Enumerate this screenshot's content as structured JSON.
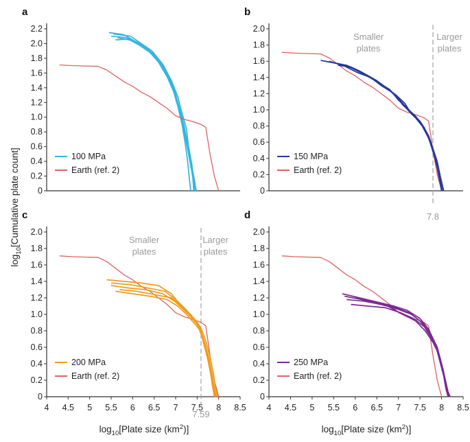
{
  "figure": {
    "ylabel_main": "log",
    "ylabel_sub": "10",
    "ylabel_rest": "[Cumulative plate count]",
    "xlabel_main": "log",
    "xlabel_sub": "10",
    "xlabel_rest": "[Plate size (km",
    "xlabel_sup": "2",
    "xlabel_end": ")]"
  },
  "colors": {
    "earth": "#e06060",
    "p100": "#35b5e0",
    "p150": "#27399a",
    "p200": "#f09a1c",
    "p250": "#7a2a92",
    "axis": "#333333",
    "guide": "#a8a8a8"
  },
  "chart_data": [
    {
      "type": "line",
      "panel": "a",
      "xlim": [
        4,
        8.5
      ],
      "ylim": [
        0,
        2.2
      ],
      "yticks": [
        "0",
        "0.2",
        "0.4",
        "0.6",
        "0.8",
        "1.0",
        "1.2",
        "1.4",
        "1.6",
        "1.8",
        "2.0",
        "2.2"
      ],
      "xticks": [],
      "legend": [
        "100 MPa",
        "Earth (ref. 2)"
      ],
      "legend_placement": "bottom-left",
      "series": [
        {
          "name": "100 MPa",
          "color": "p100",
          "x": [
            5.45,
            5.8,
            6.0,
            6.3,
            6.5,
            6.7,
            6.9,
            7.0,
            7.1,
            7.2,
            7.3,
            7.38,
            7.45
          ],
          "y": [
            2.15,
            2.12,
            2.05,
            1.95,
            1.85,
            1.7,
            1.5,
            1.3,
            1.05,
            0.8,
            0.5,
            0.25,
            0
          ]
        },
        {
          "name": "100 MPa",
          "color": "p100",
          "x": [
            5.5,
            5.85,
            6.1,
            6.35,
            6.55,
            6.75,
            6.95,
            7.05,
            7.15,
            7.25,
            7.33,
            7.42,
            7.48
          ],
          "y": [
            2.1,
            2.08,
            2.02,
            1.92,
            1.8,
            1.62,
            1.42,
            1.2,
            0.95,
            0.72,
            0.45,
            0.2,
            0
          ]
        },
        {
          "name": "100 MPa",
          "color": "p100",
          "x": [
            5.6,
            5.9,
            6.15,
            6.4,
            6.6,
            6.8,
            6.95,
            7.05,
            7.15,
            7.22,
            7.28,
            7.32,
            7.35
          ],
          "y": [
            2.05,
            2.06,
            1.98,
            1.88,
            1.75,
            1.55,
            1.35,
            1.15,
            0.9,
            0.65,
            0.4,
            0.15,
            0
          ]
        },
        {
          "name": "100 MPa",
          "color": "p100",
          "x": [
            5.55,
            5.95,
            6.2,
            6.45,
            6.7,
            6.9,
            7.05,
            7.15,
            7.25,
            7.3,
            7.38,
            7.42,
            7.45
          ],
          "y": [
            2.13,
            2.1,
            2.0,
            1.9,
            1.72,
            1.5,
            1.28,
            1.05,
            0.85,
            0.6,
            0.35,
            0.12,
            0
          ]
        },
        {
          "name": "100 MPa",
          "color": "p100",
          "x": [
            5.65,
            6.0,
            6.25,
            6.5,
            6.7,
            6.85,
            7.0,
            7.1,
            7.2,
            7.28,
            7.35,
            7.4,
            7.42
          ],
          "y": [
            2.08,
            2.04,
            1.96,
            1.85,
            1.68,
            1.52,
            1.3,
            1.1,
            0.88,
            0.62,
            0.38,
            0.18,
            0
          ]
        },
        {
          "name": "Earth (ref. 2)",
          "color": "earth",
          "x": [
            4.3,
            4.6,
            5.2,
            5.4,
            5.6,
            5.8,
            6.0,
            6.2,
            6.4,
            6.6,
            6.8,
            7.0,
            7.2,
            7.4,
            7.6,
            7.7,
            7.8,
            7.9,
            8.0
          ],
          "y": [
            1.71,
            1.7,
            1.69,
            1.64,
            1.56,
            1.48,
            1.42,
            1.34,
            1.28,
            1.2,
            1.12,
            1.02,
            0.97,
            0.94,
            0.9,
            0.86,
            0.5,
            0.2,
            0
          ]
        }
      ]
    },
    {
      "type": "line",
      "panel": "b",
      "xlim": [
        4,
        8.5
      ],
      "ylim": [
        0,
        2.0
      ],
      "yticks": [
        "0",
        "0.2",
        "0.4",
        "0.6",
        "0.8",
        "1.0",
        "1.2",
        "1.4",
        "1.6",
        "1.8",
        "2.0"
      ],
      "xticks": [],
      "annotations": [
        "Smaller",
        "plates",
        "Larger",
        "plates",
        "7.8"
      ],
      "divider_x": 7.8,
      "legend": [
        "150 MPa",
        "Earth (ref. 2)"
      ],
      "legend_placement": "bottom-left",
      "series": [
        {
          "name": "Earth (ref. 2)",
          "color": "earth",
          "x": [
            4.3,
            4.6,
            5.2,
            5.4,
            5.6,
            5.8,
            6.0,
            6.2,
            6.4,
            6.6,
            6.8,
            7.0,
            7.2,
            7.4,
            7.6,
            7.7,
            7.8,
            7.9,
            8.0
          ],
          "y": [
            1.71,
            1.7,
            1.69,
            1.64,
            1.56,
            1.48,
            1.42,
            1.34,
            1.28,
            1.2,
            1.12,
            1.02,
            0.97,
            0.94,
            0.9,
            0.86,
            0.5,
            0.2,
            0
          ]
        },
        {
          "name": "150 MPa",
          "color": "p150",
          "x": [
            5.2,
            5.6,
            5.9,
            6.2,
            6.5,
            6.8,
            7.0,
            7.2,
            7.4,
            7.55,
            7.7,
            7.8,
            7.9,
            8.0
          ],
          "y": [
            1.61,
            1.57,
            1.52,
            1.44,
            1.35,
            1.25,
            1.12,
            1.02,
            0.9,
            0.8,
            0.65,
            0.5,
            0.28,
            0
          ]
        },
        {
          "name": "150 MPa",
          "color": "p150",
          "x": [
            5.3,
            5.7,
            6.0,
            6.3,
            6.6,
            6.85,
            7.05,
            7.25,
            7.45,
            7.6,
            7.72,
            7.82,
            7.92,
            8.02
          ],
          "y": [
            1.6,
            1.56,
            1.5,
            1.42,
            1.32,
            1.22,
            1.1,
            0.98,
            0.88,
            0.78,
            0.62,
            0.45,
            0.25,
            0
          ]
        },
        {
          "name": "150 MPa",
          "color": "p150",
          "x": [
            5.5,
            5.8,
            6.1,
            6.4,
            6.7,
            6.95,
            7.15,
            7.3,
            7.5,
            7.65,
            7.75,
            7.85,
            7.95,
            8.0
          ],
          "y": [
            1.58,
            1.55,
            1.48,
            1.38,
            1.28,
            1.18,
            1.08,
            0.95,
            0.85,
            0.72,
            0.58,
            0.42,
            0.2,
            0
          ]
        },
        {
          "name": "150 MPa",
          "color": "p150",
          "x": [
            5.6,
            5.9,
            6.2,
            6.5,
            6.75,
            7.0,
            7.2,
            7.4,
            7.55,
            7.7,
            7.8,
            7.9,
            7.97,
            8.05
          ],
          "y": [
            1.55,
            1.53,
            1.45,
            1.36,
            1.26,
            1.14,
            1.02,
            0.92,
            0.82,
            0.68,
            0.52,
            0.36,
            0.18,
            0
          ]
        },
        {
          "name": "150 MPa",
          "color": "p150",
          "x": [
            5.4,
            5.75,
            6.05,
            6.35,
            6.6,
            6.9,
            7.1,
            7.3,
            7.5,
            7.62,
            7.75,
            7.85,
            7.93,
            8.0
          ],
          "y": [
            1.6,
            1.54,
            1.46,
            1.4,
            1.3,
            1.2,
            1.06,
            0.96,
            0.86,
            0.75,
            0.6,
            0.44,
            0.22,
            0
          ]
        }
      ]
    },
    {
      "type": "line",
      "panel": "c",
      "xlim": [
        4,
        8.5
      ],
      "ylim": [
        0,
        2.0
      ],
      "yticks": [
        "0",
        "0.2",
        "0.4",
        "0.6",
        "0.8",
        "1.0",
        "1.2",
        "1.4",
        "1.6",
        "1.8",
        "2.0"
      ],
      "xticks": [
        "4",
        "4.5",
        "5",
        "5.5",
        "6",
        "6.5",
        "7",
        "7.5",
        "8",
        "8.5"
      ],
      "annotations": [
        "Smaller",
        "plates",
        "Larger",
        "plates",
        "7.59"
      ],
      "divider_x": 7.59,
      "legend": [
        "200 MPa",
        "Earth (ref. 2)"
      ],
      "legend_placement": "bottom-left",
      "series": [
        {
          "name": "Earth (ref. 2)",
          "color": "earth",
          "x": [
            4.3,
            4.6,
            5.2,
            5.4,
            5.6,
            5.8,
            6.0,
            6.2,
            6.4,
            6.6,
            6.8,
            7.0,
            7.2,
            7.4,
            7.6,
            7.7,
            7.8,
            7.9,
            8.0
          ],
          "y": [
            1.71,
            1.7,
            1.69,
            1.64,
            1.56,
            1.48,
            1.42,
            1.34,
            1.28,
            1.2,
            1.12,
            1.02,
            0.97,
            0.94,
            0.9,
            0.86,
            0.5,
            0.2,
            0
          ]
        },
        {
          "name": "200 MPa",
          "color": "p200",
          "x": [
            5.4,
            5.8,
            6.2,
            6.6,
            6.9,
            7.1,
            7.3,
            7.5,
            7.6,
            7.7,
            7.8,
            7.85,
            7.9
          ],
          "y": [
            1.42,
            1.4,
            1.38,
            1.35,
            1.25,
            1.12,
            1.0,
            0.88,
            0.75,
            0.55,
            0.35,
            0.15,
            0
          ]
        },
        {
          "name": "200 MPa",
          "color": "p200",
          "x": [
            5.5,
            5.9,
            6.3,
            6.7,
            7.0,
            7.2,
            7.4,
            7.55,
            7.65,
            7.75,
            7.82,
            7.88,
            7.92
          ],
          "y": [
            1.35,
            1.32,
            1.3,
            1.25,
            1.15,
            1.05,
            0.95,
            0.85,
            0.7,
            0.5,
            0.3,
            0.12,
            0
          ]
        },
        {
          "name": "200 MPa",
          "color": "p200",
          "x": [
            5.6,
            6.0,
            6.4,
            6.8,
            7.05,
            7.25,
            7.42,
            7.58,
            7.68,
            7.78,
            7.85,
            7.9,
            7.95
          ],
          "y": [
            1.28,
            1.25,
            1.22,
            1.18,
            1.1,
            1.0,
            0.9,
            0.8,
            0.65,
            0.45,
            0.26,
            0.1,
            0
          ]
        },
        {
          "name": "200 MPa",
          "color": "p200",
          "x": [
            5.7,
            6.1,
            6.5,
            6.9,
            7.1,
            7.3,
            7.48,
            7.6,
            7.7,
            7.8,
            7.88,
            7.93,
            7.98
          ],
          "y": [
            1.3,
            1.28,
            1.24,
            1.2,
            1.12,
            1.02,
            0.92,
            0.82,
            0.68,
            0.48,
            0.28,
            0.1,
            0
          ]
        },
        {
          "name": "200 MPa",
          "color": "p200",
          "x": [
            5.5,
            5.95,
            6.35,
            6.75,
            7.0,
            7.2,
            7.38,
            7.52,
            7.62,
            7.72,
            7.8,
            7.86,
            7.9
          ],
          "y": [
            1.38,
            1.36,
            1.32,
            1.28,
            1.18,
            1.08,
            0.98,
            0.86,
            0.72,
            0.52,
            0.32,
            0.14,
            0
          ]
        }
      ]
    },
    {
      "type": "line",
      "panel": "d",
      "xlim": [
        4,
        8.5
      ],
      "ylim": [
        0,
        2.0
      ],
      "yticks": [
        "0",
        "0.2",
        "0.4",
        "0.6",
        "0.8",
        "1.0",
        "1.2",
        "1.4",
        "1.6",
        "1.8",
        "2.0"
      ],
      "xticks": [
        "4",
        "4.5",
        "5",
        "5.5",
        "6",
        "6.5",
        "7",
        "7.5",
        "8",
        "8.5"
      ],
      "legend": [
        "250 MPa",
        "Earth (ref. 2)"
      ],
      "legend_placement": "bottom-left",
      "series": [
        {
          "name": "Earth (ref. 2)",
          "color": "earth",
          "x": [
            4.3,
            4.6,
            5.2,
            5.4,
            5.6,
            5.8,
            6.0,
            6.2,
            6.4,
            6.6,
            6.8,
            7.0,
            7.2,
            7.4,
            7.6,
            7.7,
            7.8,
            7.9,
            8.0
          ],
          "y": [
            1.71,
            1.7,
            1.69,
            1.64,
            1.56,
            1.48,
            1.42,
            1.34,
            1.28,
            1.2,
            1.12,
            1.02,
            0.97,
            0.94,
            0.9,
            0.86,
            0.5,
            0.2,
            0
          ]
        },
        {
          "name": "250 MPa",
          "color": "p250",
          "x": [
            5.7,
            6.1,
            6.5,
            6.9,
            7.2,
            7.5,
            7.7,
            7.85,
            7.95,
            8.05,
            8.1,
            8.15
          ],
          "y": [
            1.25,
            1.2,
            1.15,
            1.1,
            1.05,
            0.95,
            0.82,
            0.65,
            0.45,
            0.25,
            0.1,
            0
          ]
        },
        {
          "name": "250 MPa",
          "color": "p250",
          "x": [
            5.8,
            6.2,
            6.6,
            7.0,
            7.3,
            7.55,
            7.75,
            7.9,
            8.0,
            8.08,
            8.12,
            8.18
          ],
          "y": [
            1.18,
            1.16,
            1.12,
            1.06,
            1.0,
            0.9,
            0.76,
            0.6,
            0.4,
            0.22,
            0.08,
            0
          ]
        },
        {
          "name": "250 MPa",
          "color": "p250",
          "x": [
            5.9,
            6.3,
            6.7,
            7.05,
            7.35,
            7.6,
            7.78,
            7.92,
            8.02,
            8.1,
            8.15,
            8.2
          ],
          "y": [
            1.12,
            1.1,
            1.08,
            1.02,
            0.95,
            0.85,
            0.7,
            0.55,
            0.35,
            0.18,
            0.06,
            0
          ]
        },
        {
          "name": "250 MPa",
          "color": "p250",
          "x": [
            6.0,
            6.35,
            6.75,
            7.1,
            7.4,
            7.62,
            7.8,
            7.95,
            8.04,
            8.1,
            8.15,
            8.18
          ],
          "y": [
            1.2,
            1.15,
            1.1,
            1.0,
            0.92,
            0.8,
            0.66,
            0.5,
            0.32,
            0.16,
            0.05,
            0
          ]
        },
        {
          "name": "250 MPa",
          "color": "p250",
          "x": [
            5.75,
            6.15,
            6.55,
            6.95,
            7.25,
            7.5,
            7.72,
            7.88,
            7.98,
            8.06,
            8.12,
            8.16
          ],
          "y": [
            1.22,
            1.18,
            1.14,
            1.08,
            1.02,
            0.92,
            0.78,
            0.62,
            0.42,
            0.24,
            0.09,
            0
          ]
        }
      ]
    }
  ]
}
